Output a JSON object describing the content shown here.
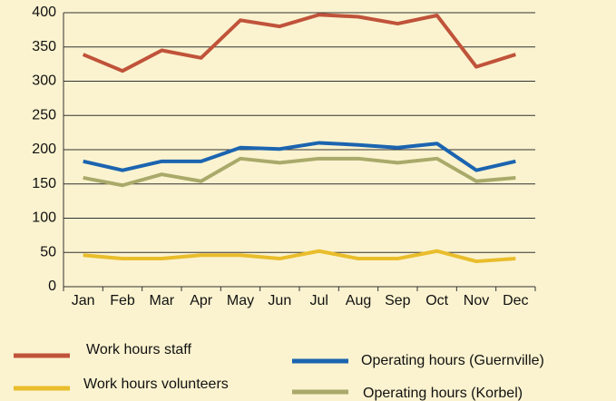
{
  "chart_data": {
    "type": "line",
    "categories": [
      "Jan",
      "Feb",
      "Mar",
      "Apr",
      "May",
      "Jun",
      "Jul",
      "Aug",
      "Sep",
      "Oct",
      "Nov",
      "Dec"
    ],
    "series": [
      {
        "name": "Work hours staff",
        "color": "#c0533a",
        "values": [
          339,
          315,
          345,
          334,
          389,
          380,
          397,
          394,
          384,
          396,
          321,
          339
        ]
      },
      {
        "name": "Work hours volunteers",
        "color": "#e9bd2b",
        "values": [
          46,
          41,
          41,
          46,
          46,
          41,
          52,
          41,
          41,
          52,
          37,
          41
        ]
      },
      {
        "name": "Operating hours (Guernville)",
        "color": "#1b64b0",
        "values": [
          183,
          170,
          183,
          183,
          203,
          201,
          210,
          207,
          203,
          209,
          170,
          183
        ]
      },
      {
        "name": "Operating hours (Korbel)",
        "color": "#a9aa6a",
        "values": [
          159,
          148,
          164,
          154,
          187,
          181,
          187,
          187,
          181,
          187,
          154,
          159
        ]
      }
    ],
    "ylim": [
      0,
      400
    ],
    "yticks": [
      0,
      50,
      100,
      150,
      200,
      250,
      300,
      350,
      400
    ],
    "grid": true
  }
}
